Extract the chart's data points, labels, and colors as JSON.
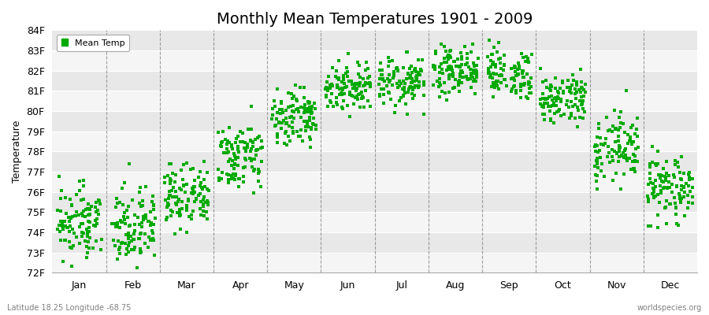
{
  "title": "Monthly Mean Temperatures 1901 - 2009",
  "ylabel": "Temperature",
  "xlabel_labels": [
    "Jan",
    "Feb",
    "Mar",
    "Apr",
    "May",
    "Jun",
    "Jul",
    "Aug",
    "Sep",
    "Oct",
    "Nov",
    "Dec"
  ],
  "ylim": [
    72,
    84
  ],
  "ytick_labels": [
    "72F",
    "73F",
    "74F",
    "75F",
    "76F",
    "77F",
    "78F",
    "79F",
    "80F",
    "81F",
    "82F",
    "83F",
    "84F"
  ],
  "ytick_values": [
    72,
    73,
    74,
    75,
    76,
    77,
    78,
    79,
    80,
    81,
    82,
    83,
    84
  ],
  "legend_label": "Mean Temp",
  "marker_color": "#00aa00",
  "marker_size": 5,
  "background_color": "#ffffff",
  "plot_bg_color": "#ffffff",
  "title_fontsize": 14,
  "axis_fontsize": 9,
  "footer_left": "Latitude 18.25 Longitude -68.75",
  "footer_right": "worldspecies.org",
  "n_years": 109,
  "monthly_means": [
    74.5,
    74.3,
    75.6,
    77.8,
    79.8,
    81.2,
    81.5,
    82.0,
    81.8,
    80.5,
    78.2,
    76.2
  ],
  "monthly_stds": [
    0.85,
    0.95,
    0.85,
    0.75,
    0.65,
    0.65,
    0.6,
    0.6,
    0.7,
    0.65,
    0.85,
    0.9
  ],
  "band_colors": [
    "#f5f5f5",
    "#e8e8e8"
  ],
  "grid_color": "#ffffff",
  "vline_color": "#888888",
  "legend_edge_color": "#aaaaaa"
}
